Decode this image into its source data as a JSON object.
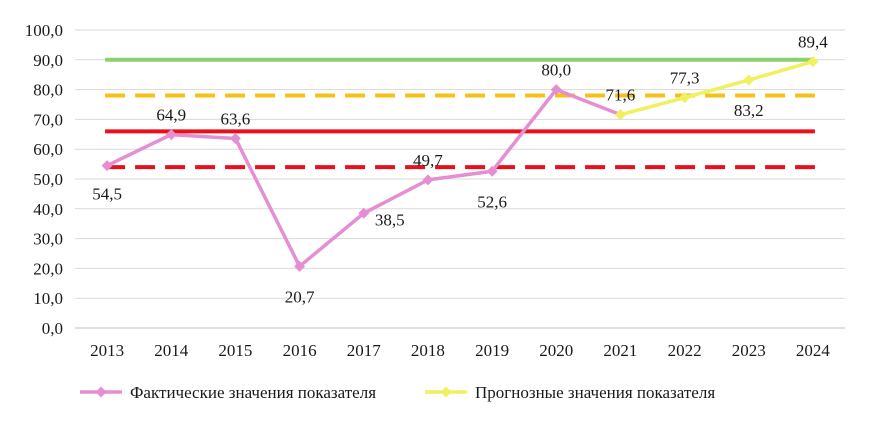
{
  "chart_data": {
    "type": "line",
    "categories": [
      "2013",
      "2014",
      "2015",
      "2016",
      "2017",
      "2018",
      "2019",
      "2020",
      "2021",
      "2022",
      "2023",
      "2024"
    ],
    "ylim": [
      0,
      100
    ],
    "ytick_labels": [
      "0,0",
      "10,0",
      "20,0",
      "30,0",
      "40,0",
      "50,0",
      "60,0",
      "70,0",
      "80,0",
      "90,0",
      "100,0"
    ],
    "ytick_values": [
      0,
      10,
      20,
      30,
      40,
      50,
      60,
      70,
      80,
      90,
      100
    ],
    "grid": "horizontal",
    "legend_position": "bottom",
    "series": [
      {
        "name": "Фактические значения показателя",
        "color": "#e58ed2",
        "marker": "diamond",
        "x": [
          "2013",
          "2014",
          "2015",
          "2016",
          "2017",
          "2018",
          "2019",
          "2020",
          "2021"
        ],
        "values": [
          54.5,
          64.9,
          63.6,
          20.7,
          38.5,
          49.7,
          52.6,
          80.0,
          71.6
        ],
        "labels": [
          "54,5",
          "64,9",
          "63,6",
          "20,7",
          "38,5",
          "49,7",
          "52,6",
          "80,0",
          "71,6"
        ]
      },
      {
        "name": "Прогнозные значения показателя",
        "color": "#f0f060",
        "marker": "diamond",
        "x": [
          "2021",
          "2022",
          "2023",
          "2024"
        ],
        "values": [
          71.6,
          77.3,
          83.2,
          89.4
        ],
        "labels": [
          "",
          "77,3",
          "83,2",
          "89,4"
        ]
      }
    ],
    "reference_lines": [
      {
        "value": 90,
        "color": "#8fcf6f",
        "style": "solid"
      },
      {
        "value": 78,
        "color": "#f5c21b",
        "style": "dashed"
      },
      {
        "value": 66,
        "color": "#e8101a",
        "style": "solid"
      },
      {
        "value": 54,
        "color": "#e8101a",
        "style": "dashed"
      }
    ]
  }
}
